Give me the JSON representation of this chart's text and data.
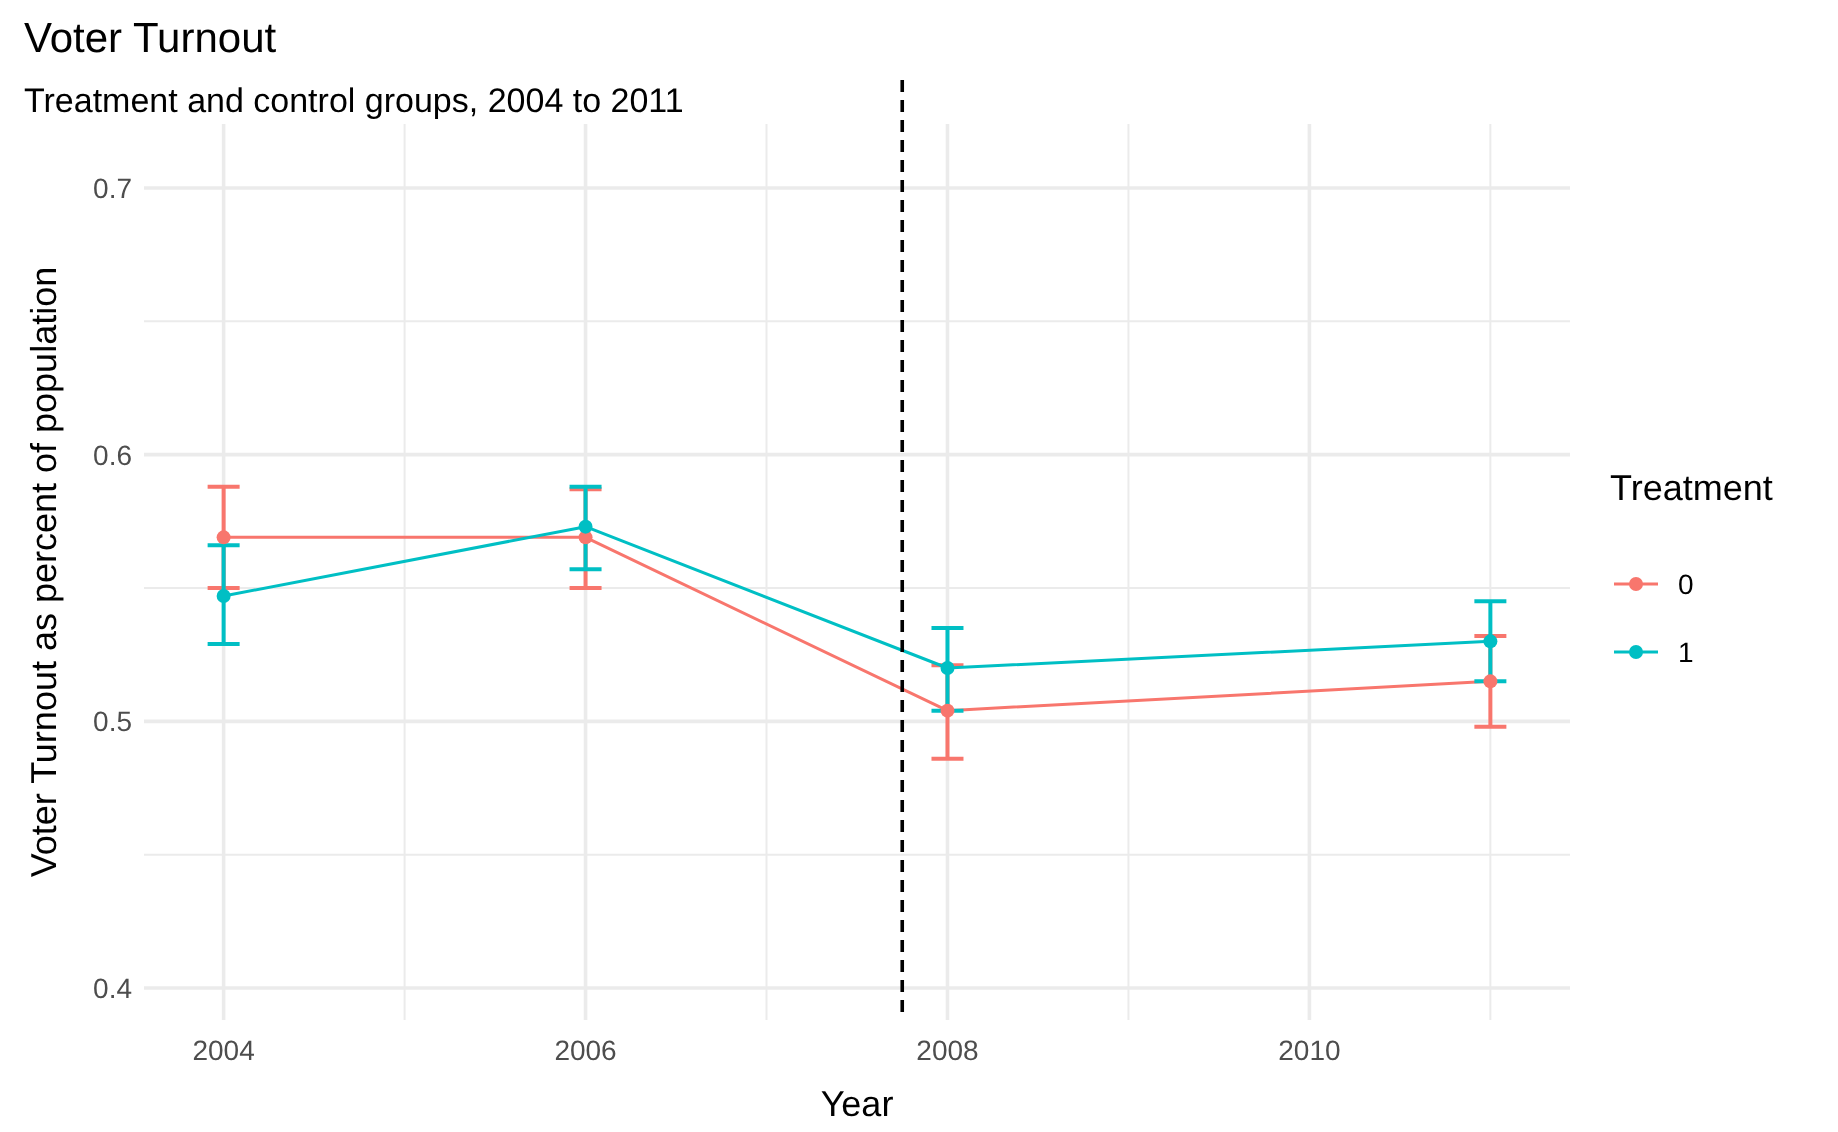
{
  "chart_data": {
    "type": "line",
    "title": "Voter Turnout",
    "subtitle": "Treatment and control groups, 2004 to 2011",
    "xlabel": "Year",
    "ylabel": "Voter Turnout as percent of population",
    "legend_title": "Treatment",
    "x": [
      2004,
      2006,
      2008,
      2011
    ],
    "series": [
      {
        "name": "0",
        "color": "#f8766d",
        "values": [
          0.569,
          0.569,
          0.504,
          0.515
        ],
        "errors": [
          [
            0.55,
            0.588
          ],
          [
            0.55,
            0.587
          ],
          [
            0.486,
            0.521
          ],
          [
            0.498,
            0.532
          ]
        ]
      },
      {
        "name": "1",
        "color": "#00bfc4",
        "values": [
          0.547,
          0.573,
          0.52,
          0.53
        ],
        "errors": [
          [
            0.529,
            0.566
          ],
          [
            0.557,
            0.588
          ],
          [
            0.504,
            0.535
          ],
          [
            0.515,
            0.545
          ]
        ]
      }
    ],
    "xlim": [
      2003.56,
      2011.44
    ],
    "xticks": [
      2004,
      {
        "value": 2005,
        "label": null
      },
      2006,
      {
        "value": 2007,
        "label": null
      },
      2008,
      {
        "value": 2009,
        "label": null
      },
      2010,
      {
        "value": 2011,
        "label": null
      }
    ],
    "ylim": [
      0.388,
      0.724
    ],
    "yticks": [
      0.4,
      {
        "value": 0.45,
        "label": null
      },
      0.5,
      {
        "value": 0.55,
        "label": null
      },
      0.6,
      {
        "value": 0.65,
        "label": null
      },
      0.7
    ],
    "ref_lines": [
      {
        "axis": "x",
        "value": 2007.75,
        "line_style": "dashed",
        "color": "#000000"
      }
    ],
    "grid": true,
    "legend": "right",
    "marker": "circle",
    "line_style": "solid"
  }
}
